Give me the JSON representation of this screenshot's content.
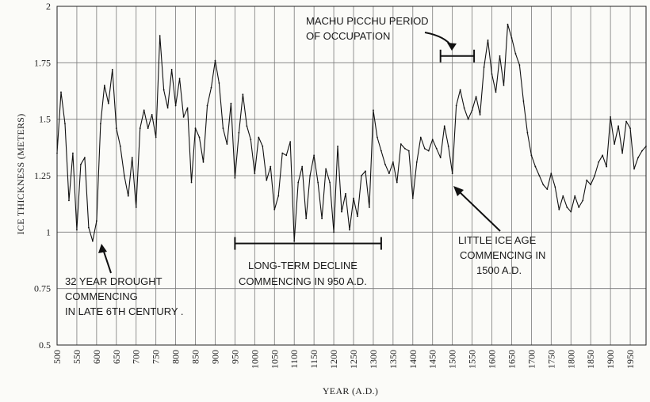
{
  "chart_data": {
    "type": "line",
    "xlabel": "YEAR (A.D.)",
    "ylabel": "ICE THICKNESS (METERS)",
    "xlim": [
      500,
      1990
    ],
    "ylim": [
      0.5,
      2
    ],
    "grid": true,
    "x_ticks": [
      "500",
      "550",
      "600",
      "650",
      "700",
      "750",
      "800",
      "850",
      "900",
      "950",
      "1000",
      "1050",
      "1100",
      "1150",
      "1200",
      "1250",
      "1300",
      "1350",
      "1400",
      "1450",
      "1500",
      "1550",
      "1600",
      "1650",
      "1700",
      "1750",
      "1800",
      "1850",
      "1900",
      "1950"
    ],
    "y_ticks": [
      "0.5",
      "0.75",
      "1",
      "1.25",
      "1.5",
      "1.75",
      "2"
    ],
    "series": [
      {
        "x": [
          500,
          510,
          520,
          530,
          540,
          550,
          560,
          570,
          580,
          590,
          600,
          610,
          620,
          630,
          640,
          650,
          660,
          670,
          680,
          690,
          700,
          710,
          720,
          730,
          740,
          750,
          760,
          770,
          780,
          790,
          800,
          810,
          820,
          830,
          840,
          850,
          860,
          870,
          880,
          890,
          900,
          910,
          920,
          930,
          940,
          950,
          960,
          970,
          980,
          990,
          1000,
          1010,
          1020,
          1030,
          1040,
          1050,
          1060,
          1070,
          1080,
          1090,
          1100,
          1110,
          1120,
          1130,
          1140,
          1150,
          1160,
          1170,
          1180,
          1190,
          1200,
          1210,
          1220,
          1230,
          1240,
          1250,
          1260,
          1270,
          1280,
          1290,
          1300,
          1310,
          1320,
          1330,
          1340,
          1350,
          1360,
          1370,
          1380,
          1390,
          1400,
          1410,
          1420,
          1430,
          1440,
          1450,
          1460,
          1470,
          1480,
          1490,
          1500,
          1510,
          1520,
          1530,
          1540,
          1550,
          1560,
          1570,
          1580,
          1590,
          1600,
          1610,
          1620,
          1630,
          1640,
          1650,
          1660,
          1670,
          1680,
          1690,
          1700,
          1710,
          1720,
          1730,
          1740,
          1750,
          1760,
          1770,
          1780,
          1790,
          1800,
          1810,
          1820,
          1830,
          1840,
          1850,
          1860,
          1870,
          1880,
          1890,
          1900,
          1910,
          1920,
          1930,
          1940,
          1950,
          1960,
          1970,
          1980,
          1990
        ],
        "values": [
          1.35,
          1.62,
          1.48,
          1.14,
          1.35,
          1.01,
          1.3,
          1.33,
          1.02,
          0.96,
          1.05,
          1.48,
          1.65,
          1.57,
          1.72,
          1.46,
          1.38,
          1.25,
          1.16,
          1.33,
          1.11,
          1.46,
          1.54,
          1.46,
          1.52,
          1.42,
          1.87,
          1.63,
          1.55,
          1.72,
          1.56,
          1.68,
          1.51,
          1.55,
          1.22,
          1.46,
          1.42,
          1.31,
          1.56,
          1.64,
          1.76,
          1.66,
          1.46,
          1.39,
          1.57,
          1.24,
          1.44,
          1.61,
          1.47,
          1.41,
          1.26,
          1.42,
          1.38,
          1.23,
          1.29,
          1.1,
          1.16,
          1.35,
          1.34,
          1.4,
          0.96,
          1.22,
          1.29,
          1.06,
          1.25,
          1.34,
          1.22,
          1.06,
          1.28,
          1.22,
          1.0,
          1.38,
          1.09,
          1.17,
          1.01,
          1.15,
          1.07,
          1.25,
          1.27,
          1.11,
          1.54,
          1.42,
          1.36,
          1.3,
          1.26,
          1.31,
          1.22,
          1.39,
          1.37,
          1.36,
          1.15,
          1.31,
          1.42,
          1.37,
          1.36,
          1.41,
          1.37,
          1.33,
          1.47,
          1.38,
          1.26,
          1.56,
          1.63,
          1.55,
          1.5,
          1.54,
          1.6,
          1.52,
          1.73,
          1.85,
          1.7,
          1.62,
          1.78,
          1.65,
          1.92,
          1.86,
          1.79,
          1.74,
          1.58,
          1.44,
          1.34,
          1.29,
          1.25,
          1.21,
          1.19,
          1.26,
          1.2,
          1.1,
          1.16,
          1.11,
          1.09,
          1.16,
          1.11,
          1.14,
          1.23,
          1.21,
          1.25,
          1.31,
          1.34,
          1.29,
          1.51,
          1.39,
          1.47,
          1.35,
          1.49,
          1.46,
          1.28,
          1.33,
          1.36,
          1.38
        ]
      }
    ],
    "annotations": [
      {
        "lines": [
          "MACHU PICCHU PERIOD",
          "OF OCCUPATION"
        ]
      },
      {
        "lines": [
          "LITTLE ICE AGE",
          "COMMENCING IN",
          "1500 A.D."
        ]
      },
      {
        "lines": [
          "LONG-TERM DECLINE",
          "COMMENCING IN 950 A.D."
        ]
      },
      {
        "lines": [
          "32 YEAR DROUGHT",
          "COMMENCING",
          "IN LATE 6TH CENTURY ."
        ]
      }
    ],
    "brackets": [
      {
        "x_start": 950,
        "x_end": 1320,
        "y": 0.95
      },
      {
        "x_start": 1470,
        "x_end": 1555,
        "y": 1.78
      }
    ]
  }
}
